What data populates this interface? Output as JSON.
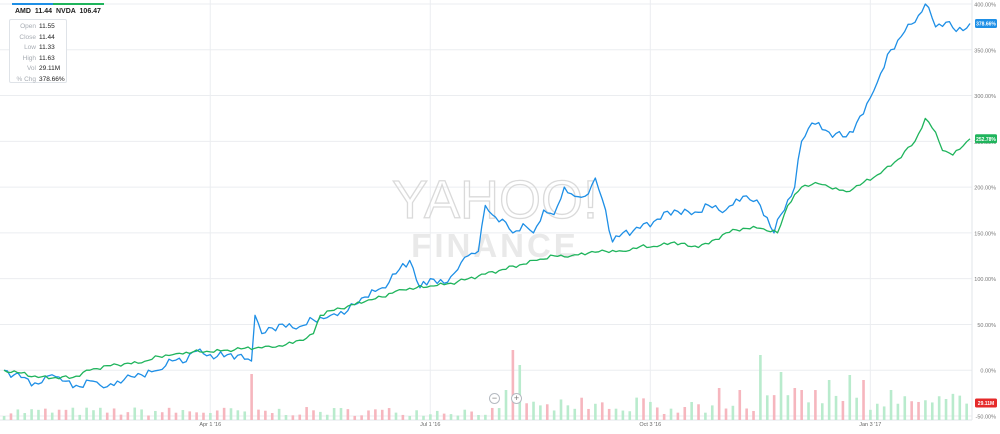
{
  "tickers": [
    {
      "symbol": "AMD",
      "value": "11.44",
      "color": "#1e8fe6"
    },
    {
      "symbol": "NVDA",
      "value": "106.47",
      "color": "#1fb45c"
    }
  ],
  "quote": [
    {
      "label": "Open",
      "value": "11.55"
    },
    {
      "label": "Close",
      "value": "11.44"
    },
    {
      "label": "Low",
      "value": "11.33"
    },
    {
      "label": "High",
      "value": "11.63"
    },
    {
      "label": "Vol",
      "value": "29.11M"
    },
    {
      "label": "% Chg",
      "value": "378.66%"
    }
  ],
  "watermark": {
    "line1": "YAHOO!",
    "line2": "FINANCE"
  },
  "zoom": {
    "out": "−",
    "in": "+"
  },
  "chart_data": {
    "type": "line",
    "title": "",
    "xlabel": "",
    "ylabel": "",
    "x_ticks": [
      "Apr 1 '16",
      "Jul 1 '16",
      "Oct 3 '16",
      "Jan 3 '17"
    ],
    "x_tick_index": [
      60,
      124,
      188,
      252
    ],
    "y_ticks": [
      "400.00%",
      "350.00%",
      "300.00%",
      "250.00%",
      "200.00%",
      "150.00%",
      "100.00%",
      "50.00%",
      "0.00%",
      "-50.00%"
    ],
    "ylim": [
      -50,
      400
    ],
    "grid": true,
    "legend": "top-left",
    "volume_badge": {
      "label": "29.11M",
      "color": "#e52a2a"
    },
    "series": [
      {
        "name": "AMD",
        "color": "#1e8fe6",
        "end_label": "378.66%",
        "anchors": [
          [
            0,
            0
          ],
          [
            5,
            -8
          ],
          [
            10,
            -15
          ],
          [
            14,
            -5
          ],
          [
            18,
            -12
          ],
          [
            22,
            -18
          ],
          [
            26,
            -12
          ],
          [
            30,
            -18
          ],
          [
            35,
            -10
          ],
          [
            40,
            -5
          ],
          [
            45,
            0
          ],
          [
            48,
            12
          ],
          [
            52,
            8
          ],
          [
            55,
            20
          ],
          [
            58,
            18
          ],
          [
            62,
            15
          ],
          [
            66,
            18
          ],
          [
            70,
            12
          ],
          [
            72,
            10
          ],
          [
            73,
            60
          ],
          [
            75,
            40
          ],
          [
            80,
            50
          ],
          [
            85,
            45
          ],
          [
            90,
            55
          ],
          [
            95,
            60
          ],
          [
            100,
            65
          ],
          [
            105,
            80
          ],
          [
            110,
            90
          ],
          [
            115,
            110
          ],
          [
            118,
            120
          ],
          [
            121,
            90
          ],
          [
            124,
            100
          ],
          [
            128,
            95
          ],
          [
            132,
            110
          ],
          [
            135,
            125
          ],
          [
            138,
            130
          ],
          [
            140,
            180
          ],
          [
            142,
            170
          ],
          [
            145,
            165
          ],
          [
            148,
            150
          ],
          [
            151,
            160
          ],
          [
            154,
            150
          ],
          [
            157,
            175
          ],
          [
            160,
            170
          ],
          [
            163,
            200
          ],
          [
            166,
            190
          ],
          [
            169,
            190
          ],
          [
            172,
            210
          ],
          [
            175,
            175
          ],
          [
            177,
            140
          ],
          [
            180,
            150
          ],
          [
            185,
            155
          ],
          [
            190,
            165
          ],
          [
            195,
            175
          ],
          [
            200,
            170
          ],
          [
            205,
            180
          ],
          [
            210,
            175
          ],
          [
            215,
            190
          ],
          [
            220,
            180
          ],
          [
            224,
            150
          ],
          [
            226,
            170
          ],
          [
            230,
            200
          ],
          [
            232,
            250
          ],
          [
            235,
            270
          ],
          [
            240,
            260
          ],
          [
            245,
            255
          ],
          [
            250,
            280
          ],
          [
            253,
            305
          ],
          [
            258,
            350
          ],
          [
            262,
            370
          ],
          [
            265,
            380
          ],
          [
            268,
            400
          ],
          [
            271,
            375
          ],
          [
            274,
            380
          ],
          [
            277,
            370
          ],
          [
            281,
            378.66
          ]
        ]
      },
      {
        "name": "NVDA",
        "color": "#1fb45c",
        "end_label": "252.78%",
        "anchors": [
          [
            0,
            0
          ],
          [
            5,
            -3
          ],
          [
            10,
            -8
          ],
          [
            15,
            -8
          ],
          [
            20,
            -8
          ],
          [
            25,
            0
          ],
          [
            30,
            5
          ],
          [
            35,
            7
          ],
          [
            40,
            8
          ],
          [
            45,
            15
          ],
          [
            50,
            18
          ],
          [
            55,
            20
          ],
          [
            60,
            20
          ],
          [
            65,
            22
          ],
          [
            70,
            24
          ],
          [
            74,
            25
          ],
          [
            78,
            25
          ],
          [
            82,
            28
          ],
          [
            85,
            32
          ],
          [
            88,
            35
          ],
          [
            90,
            40
          ],
          [
            92,
            60
          ],
          [
            95,
            65
          ],
          [
            100,
            70
          ],
          [
            105,
            75
          ],
          [
            110,
            80
          ],
          [
            115,
            88
          ],
          [
            120,
            90
          ],
          [
            125,
            92
          ],
          [
            130,
            95
          ],
          [
            135,
            100
          ],
          [
            140,
            105
          ],
          [
            145,
            110
          ],
          [
            150,
            115
          ],
          [
            155,
            120
          ],
          [
            160,
            125
          ],
          [
            165,
            125
          ],
          [
            170,
            128
          ],
          [
            175,
            130
          ],
          [
            180,
            130
          ],
          [
            185,
            135
          ],
          [
            190,
            135
          ],
          [
            195,
            140
          ],
          [
            200,
            135
          ],
          [
            205,
            138
          ],
          [
            210,
            150
          ],
          [
            215,
            155
          ],
          [
            220,
            155
          ],
          [
            225,
            150
          ],
          [
            228,
            180
          ],
          [
            232,
            200
          ],
          [
            236,
            205
          ],
          [
            240,
            200
          ],
          [
            245,
            195
          ],
          [
            250,
            205
          ],
          [
            255,
            215
          ],
          [
            260,
            230
          ],
          [
            265,
            250
          ],
          [
            268,
            275
          ],
          [
            271,
            260
          ],
          [
            273,
            240
          ],
          [
            276,
            235
          ],
          [
            279,
            245
          ],
          [
            281,
            252.78
          ]
        ]
      }
    ]
  }
}
